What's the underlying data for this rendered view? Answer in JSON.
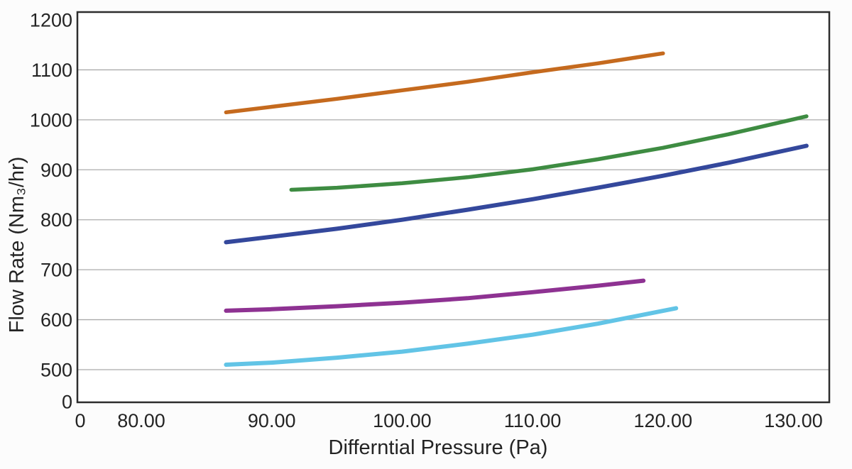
{
  "page": {
    "background_color": "#fcfcfc"
  },
  "chart_data": {
    "type": "line",
    "title": "",
    "xlabel": "Differntial Pressure (Pa)",
    "ylabel": "Flow Rate (Nm₃/hr)",
    "xlim": [
      0,
      132.7
    ],
    "ylim": [
      0,
      1215
    ],
    "grid": "horizontal-only",
    "legend": "none",
    "axis_style": {
      "frame_color": "#2d2d2d",
      "grid_color": "#ababab",
      "text_color": "#242424"
    },
    "x_axis": {
      "ticks": [
        {
          "label": "0",
          "value": 0
        },
        {
          "label": "80.00",
          "value": 80
        },
        {
          "label": "90.00",
          "value": 90
        },
        {
          "label": "100.00",
          "value": 100
        },
        {
          "label": "110.00",
          "value": 110
        },
        {
          "label": "120.00",
          "value": 120
        },
        {
          "label": "130.00",
          "value": 130
        }
      ],
      "note": "compressed axis break between 0 and 80"
    },
    "y_axis": {
      "ticks": [
        {
          "label": "0",
          "value": 0
        },
        {
          "label": "500",
          "value": 500
        },
        {
          "label": "600",
          "value": 600
        },
        {
          "label": "700",
          "value": 700
        },
        {
          "label": "800",
          "value": 800
        },
        {
          "label": "900",
          "value": 900
        },
        {
          "label": "1000",
          "value": 1000
        },
        {
          "label": "1100",
          "value": 1100
        },
        {
          "label": "1200",
          "value": 1200
        }
      ],
      "note": "compressed axis break between 0 and 500"
    },
    "series": [
      {
        "name": "curve-orange",
        "color": "#C56A1E",
        "stroke_width": 5.5,
        "points": [
          [
            86.5,
            1015
          ],
          [
            90,
            1026
          ],
          [
            95,
            1042
          ],
          [
            100,
            1059
          ],
          [
            105,
            1076
          ],
          [
            110,
            1095
          ],
          [
            115,
            1113
          ],
          [
            120,
            1133
          ]
        ]
      },
      {
        "name": "curve-green",
        "color": "#3E8C42",
        "stroke_width": 5.5,
        "points": [
          [
            91.5,
            860
          ],
          [
            95,
            864
          ],
          [
            100,
            873
          ],
          [
            105,
            885
          ],
          [
            110,
            901
          ],
          [
            115,
            921
          ],
          [
            120,
            944
          ],
          [
            125,
            971
          ],
          [
            131,
            1007
          ]
        ]
      },
      {
        "name": "curve-dark-blue",
        "color": "#34489C",
        "stroke_width": 6,
        "points": [
          [
            86.5,
            755
          ],
          [
            90,
            766
          ],
          [
            95,
            782
          ],
          [
            100,
            800
          ],
          [
            105,
            820
          ],
          [
            110,
            841
          ],
          [
            115,
            864
          ],
          [
            120,
            888
          ],
          [
            125,
            914
          ],
          [
            131,
            948
          ]
        ]
      },
      {
        "name": "curve-purple",
        "color": "#8E3292",
        "stroke_width": 6,
        "points": [
          [
            86.5,
            618
          ],
          [
            90,
            621
          ],
          [
            95,
            627
          ],
          [
            100,
            634
          ],
          [
            105,
            643
          ],
          [
            110,
            655
          ],
          [
            115,
            668
          ],
          [
            118.5,
            678
          ]
        ]
      },
      {
        "name": "curve-light-blue",
        "color": "#62C4E6",
        "stroke_width": 6,
        "points": [
          [
            86.5,
            510
          ],
          [
            90,
            514
          ],
          [
            95,
            524
          ],
          [
            100,
            536
          ],
          [
            105,
            552
          ],
          [
            110,
            570
          ],
          [
            115,
            592
          ],
          [
            121,
            623
          ]
        ]
      }
    ]
  }
}
